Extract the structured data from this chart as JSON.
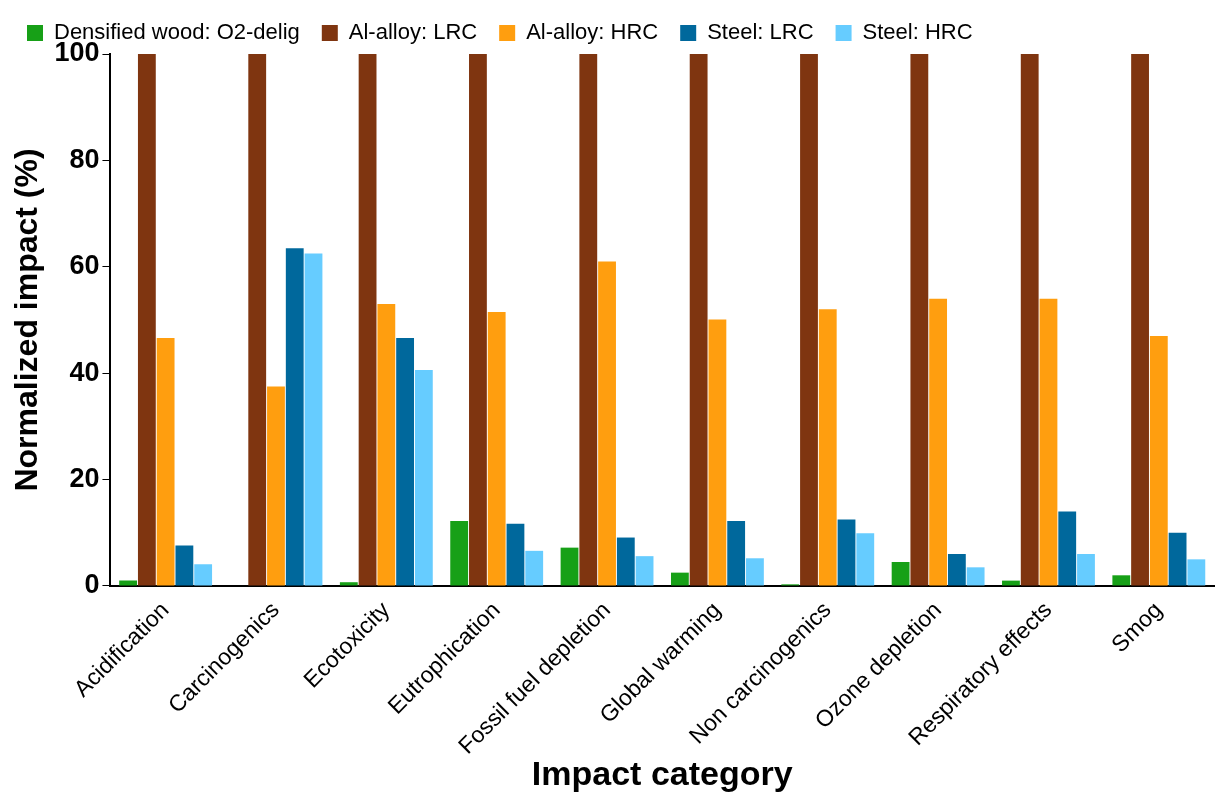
{
  "chart_data": {
    "type": "bar",
    "xlabel": "Impact category",
    "ylabel": "Normalized impact (%)",
    "categories": [
      "Acidification",
      "Carcinogenics",
      "Ecotoxicity",
      "Eutrophication",
      "Fossil fuel depletion",
      "Global warming",
      "Non carcinogenics",
      "Ozone depletion",
      "Respiratory effects",
      "Smog"
    ],
    "series": [
      {
        "name": "Densified wood: O2-delig",
        "color": "#17a017",
        "values": [
          1,
          0,
          0.7,
          12.2,
          7.2,
          2.5,
          0.3,
          4.5,
          1,
          2
        ]
      },
      {
        "name": "Al-alloy: LRC",
        "color": "#7f3510",
        "values": [
          100,
          100,
          100,
          100,
          100,
          100,
          100,
          100,
          100,
          100
        ]
      },
      {
        "name": "Al-alloy: HRC",
        "color": "#ff9e0f",
        "values": [
          46.6,
          37.5,
          53,
          51.5,
          61,
          50.1,
          52,
          54,
          54,
          47
        ]
      },
      {
        "name": "Steel: LRC",
        "color": "#00689c",
        "values": [
          7.6,
          63.5,
          46.6,
          11.7,
          9.1,
          12.2,
          12.5,
          6,
          14,
          10
        ]
      },
      {
        "name": "Steel: HRC",
        "color": "#66ccff",
        "values": [
          4.1,
          62.5,
          40.6,
          6.6,
          5.6,
          5.2,
          9.9,
          3.5,
          6,
          5
        ]
      }
    ],
    "ylim": [
      0,
      100
    ],
    "yticks": [
      0,
      20,
      40,
      60,
      80,
      100
    ],
    "grid": false,
    "legend": "top"
  }
}
